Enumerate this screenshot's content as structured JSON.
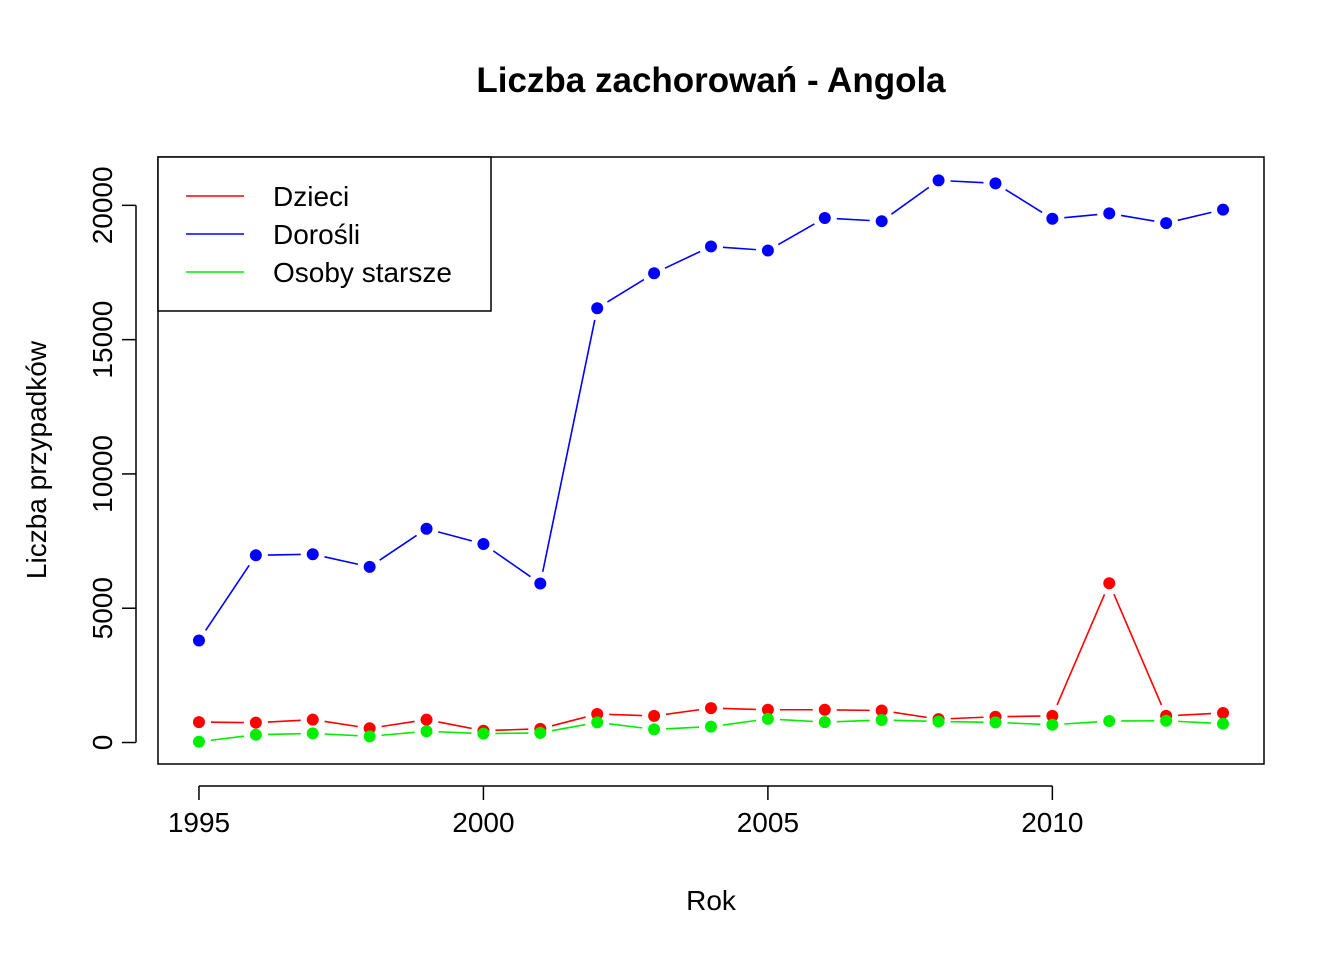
{
  "chart_data": {
    "type": "line",
    "title": "Liczba zachorowań -  Angola",
    "xlabel": "Rok",
    "ylabel": "Liczba przypadków",
    "x": [
      1995,
      1996,
      1997,
      1998,
      1999,
      2000,
      2001,
      2002,
      2003,
      2004,
      2005,
      2006,
      2007,
      2008,
      2009,
      2010,
      2011,
      2012,
      2013
    ],
    "xlim": [
      1994.28,
      2013.72
    ],
    "ylim": [
      -800,
      21800
    ],
    "x_ticks": [
      "1995",
      "2000",
      "2005",
      "2010"
    ],
    "y_ticks": [
      "0",
      "5000",
      "10000",
      "15000",
      "20000"
    ],
    "grid": false,
    "legend_position": "top-left",
    "series": [
      {
        "name": "Dzieci",
        "color": "#ff0000",
        "values": [
          760,
          740,
          850,
          530,
          850,
          440,
          510,
          1060,
          990,
          1280,
          1220,
          1220,
          1190,
          870,
          960,
          990,
          5930,
          990,
          1100
        ]
      },
      {
        "name": "Dorośli",
        "color": "#0000ff",
        "values": [
          3800,
          6970,
          7010,
          6540,
          7960,
          7390,
          5920,
          16170,
          17470,
          18470,
          18320,
          19530,
          19410,
          20930,
          20820,
          19500,
          19700,
          19340,
          19840
        ]
      },
      {
        "name": "Osoby starsze",
        "color": "#00ee00",
        "values": [
          30,
          290,
          340,
          230,
          420,
          330,
          360,
          750,
          490,
          590,
          880,
          760,
          840,
          780,
          750,
          660,
          800,
          810,
          700
        ]
      }
    ]
  }
}
